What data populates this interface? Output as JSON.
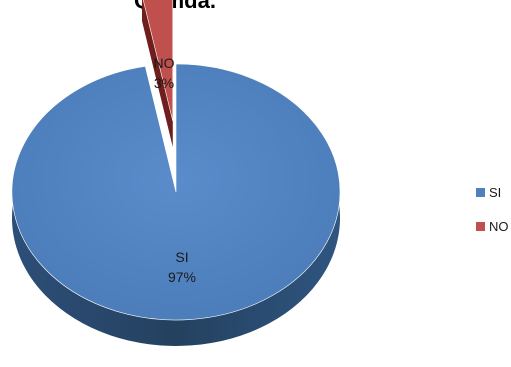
{
  "chart_data": {
    "type": "pie",
    "title": "Qumda.",
    "categories": [
      "SI",
      "NO"
    ],
    "values": [
      97,
      3
    ],
    "data_labels": [
      {
        "name": "SI",
        "value": "97%"
      },
      {
        "name": "NO",
        "value": "3%"
      }
    ],
    "colors": [
      "#4f81bd",
      "#c0504d"
    ],
    "style": "3d-exploded",
    "legend": {
      "position": "right",
      "entries": [
        "SI",
        "NO"
      ]
    }
  }
}
